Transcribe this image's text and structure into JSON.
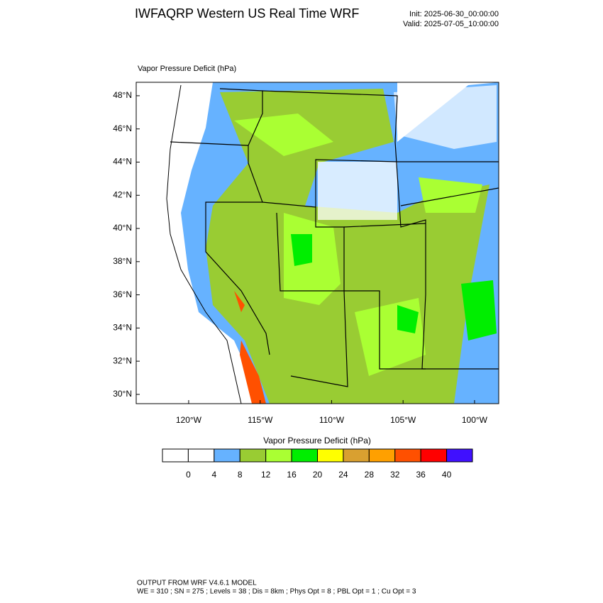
{
  "header": {
    "title": "IWFAQRP Western US Real Time WRF",
    "init": "Init: 2025-06-30_00:00:00",
    "valid": "Valid: 2025-07-05_10:00:00"
  },
  "map": {
    "field_label": "Vapor Pressure Deficit   (hPa)",
    "lonlim": [
      -123.67,
      -98.31
    ],
    "latlim": [
      29.44,
      48.81
    ],
    "lat_ticks": [
      {
        "value": 30,
        "label": "30°N"
      },
      {
        "value": 32,
        "label": "32°N"
      },
      {
        "value": 34,
        "label": "34°N"
      },
      {
        "value": 36,
        "label": "36°N"
      },
      {
        "value": 38,
        "label": "38°N"
      },
      {
        "value": 40,
        "label": "40°N"
      },
      {
        "value": 42,
        "label": "42°N"
      },
      {
        "value": 44,
        "label": "44°N"
      },
      {
        "value": 46,
        "label": "46°N"
      },
      {
        "value": 48,
        "label": "48°N"
      }
    ],
    "lon_ticks": [
      {
        "value": -120,
        "label": "120°W"
      },
      {
        "value": -115,
        "label": "115°W"
      },
      {
        "value": -110,
        "label": "110°W"
      },
      {
        "value": -105,
        "label": "105°W"
      },
      {
        "value": -100,
        "label": "100°W"
      }
    ]
  },
  "colorbar": {
    "title": "Vapor Pressure Deficit  (hPa)",
    "colors": [
      "#ffffff",
      "#ffffff",
      "#66b2ff",
      "#99cc33",
      "#aaff33",
      "#00ee00",
      "#ffff00",
      "#d9a030",
      "#ffa000",
      "#ff5000",
      "#ff0000",
      "#4010ff"
    ],
    "levels": [
      0,
      4,
      8,
      12,
      16,
      20,
      24,
      28,
      32,
      36,
      40
    ]
  },
  "footer": {
    "line1": "OUTPUT FROM WRF V4.6.1 MODEL",
    "line2": "WE = 310 ; SN = 275 ; Levels = 38 ; Dis = 8km ; Phys Opt = 8 ; PBL Opt = 1 ; Cu Opt = 3"
  }
}
